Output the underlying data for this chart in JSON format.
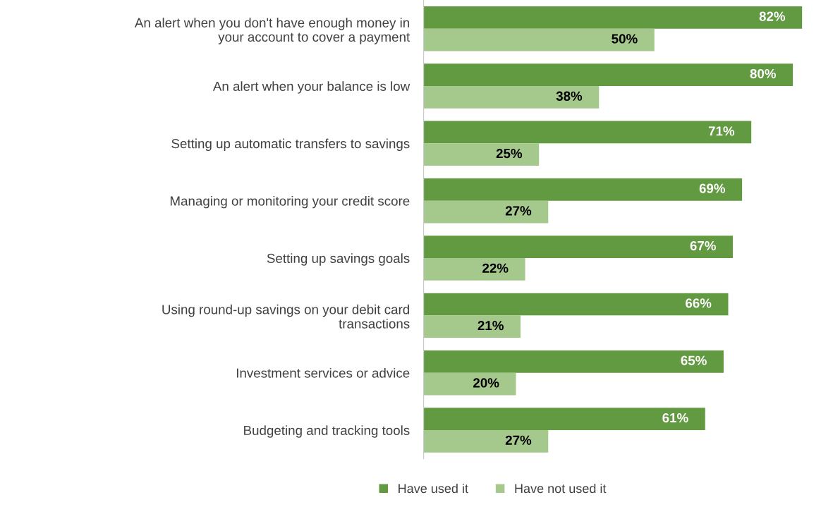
{
  "chart_data": {
    "type": "bar",
    "orientation": "horizontal",
    "categories": [
      "An alert when you don't have enough money in\nyour account to cover a payment",
      "An alert when your balance is low",
      "Setting up automatic transfers to savings",
      "Managing or monitoring your credit score",
      "Setting up savings goals",
      "Using round-up savings on your debit card\ntransactions",
      "Investment services or advice",
      "Budgeting and tracking tools"
    ],
    "series": [
      {
        "name": "Have used it",
        "color": "#629a42",
        "values": [
          82,
          80,
          71,
          69,
          67,
          66,
          65,
          61
        ],
        "value_labels": [
          "82%",
          "80%",
          "71%",
          "69%",
          "67%",
          "66%",
          "65%",
          "61%"
        ]
      },
      {
        "name": "Have not used it",
        "color": "#a5c98d",
        "values": [
          50,
          38,
          25,
          27,
          22,
          21,
          20,
          27
        ],
        "value_labels": [
          "50%",
          "38%",
          "25%",
          "27%",
          "22%",
          "21%",
          "20%",
          "27%"
        ]
      }
    ],
    "legend": "bottom",
    "grid": false
  }
}
